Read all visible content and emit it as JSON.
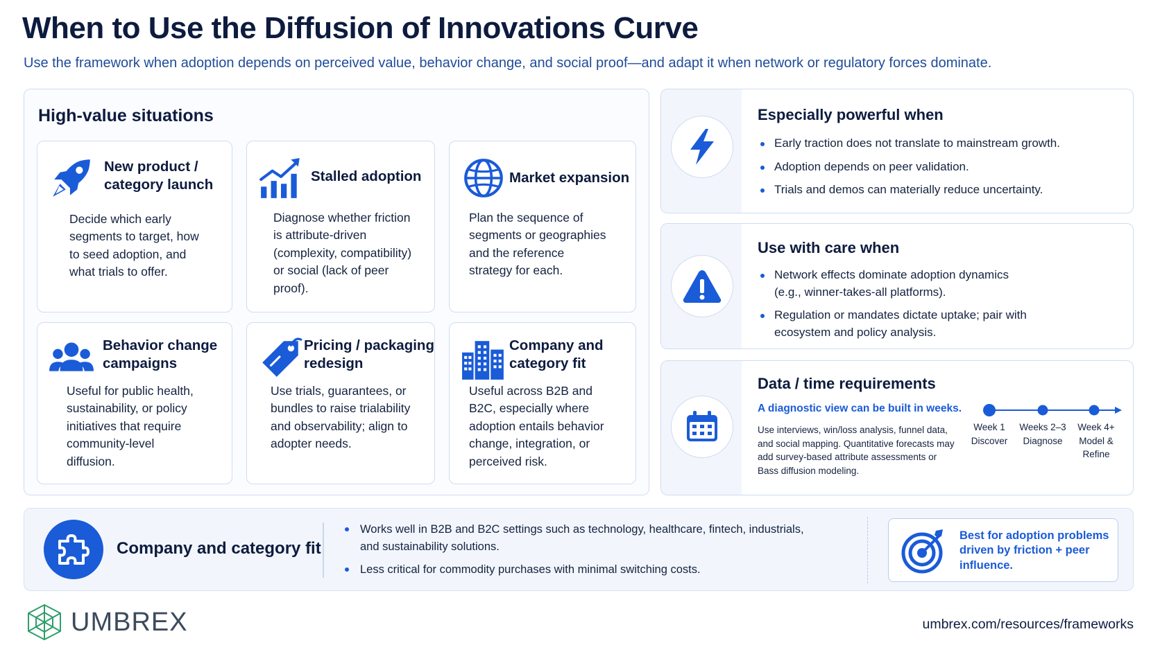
{
  "header": {
    "title": "When to Use the Diffusion of Innovations Curve",
    "subtitle": "Use the framework when adoption depends on perceived value, behavior change, and social proof—and adapt it when network or regulatory forces dominate."
  },
  "high_value": {
    "title": "High-value situations",
    "cards": [
      {
        "icon": "rocket-icon",
        "title_lines": [
          "New product /",
          "category launch"
        ],
        "text_lines": [
          "Decide which early",
          "segments to target, how",
          "to seed adoption, and",
          "what trials to offer."
        ]
      },
      {
        "icon": "growth-chart-icon",
        "title_lines": [
          "Stalled adoption"
        ],
        "text_lines": [
          "Diagnose whether friction",
          "is attribute-driven",
          "(complexity, compatibility)",
          "or social (lack of peer",
          "proof)."
        ]
      },
      {
        "icon": "globe-icon",
        "title_lines": [
          "Market expansion"
        ],
        "text_lines": [
          "Plan the sequence of",
          "segments or geographies",
          "and the reference",
          "strategy for each."
        ]
      },
      {
        "icon": "people-icon",
        "title_lines": [
          "Behavior change",
          "campaigns"
        ],
        "text_lines": [
          "Useful for public health,",
          "sustainability, or policy",
          "initiatives that require",
          "community-level",
          "diffusion."
        ]
      },
      {
        "icon": "price-tag-icon",
        "title_lines": [
          "Pricing / packaging",
          "redesign"
        ],
        "text_lines": [
          "Use trials, guarantees, or",
          "bundles to raise trialability",
          "and observability; align to",
          "adopter needs."
        ]
      },
      {
        "icon": "buildings-icon",
        "title_lines": [
          "Company and",
          "category fit"
        ],
        "text_lines": [
          "Useful across B2B and",
          "B2C, especially where",
          "adoption entails behavior",
          "change, integration, or",
          "perceived risk."
        ]
      }
    ]
  },
  "powerful": {
    "icon": "lightning-icon",
    "title": "Especially powerful when",
    "items": [
      "Early traction does not translate to mainstream growth.",
      "Adoption depends on peer validation.",
      "Trials and demos can materially reduce uncertainty."
    ]
  },
  "care": {
    "icon": "warning-icon",
    "title": "Use with care when",
    "items": [
      [
        "Network effects dominate adoption dynamics",
        "(e.g., winner-takes-all platforms)."
      ],
      [
        "Regulation or mandates dictate uptake; pair with",
        "ecosystem and policy analysis."
      ]
    ]
  },
  "data_time": {
    "icon": "calendar-icon",
    "title": "Data / time requirements",
    "highlight": "A diagnostic view can be built in weeks.",
    "detail_lines": [
      "Use interviews, win/loss analysis, funnel data,",
      "and social mapping. Quantitative forecasts may",
      "add survey-based attribute assessments or",
      "Bass diffusion modeling."
    ],
    "timeline": [
      {
        "lines": [
          "Week 1",
          "Discover"
        ]
      },
      {
        "lines": [
          "Weeks 2–3",
          "Diagnose"
        ]
      },
      {
        "lines": [
          "Week 4+",
          "Model &",
          "Refine"
        ]
      }
    ]
  },
  "fit": {
    "icon": "puzzle-icon",
    "title": "Company and category fit",
    "items": [
      [
        "Works well in B2B and B2C settings such as technology, healthcare, fintech, industrials,",
        "and sustainability solutions."
      ],
      [
        "Less critical for commodity purchases with minimal switching costs."
      ]
    ],
    "best": {
      "icon": "target-icon",
      "lines": [
        "Best for adoption problems",
        "driven by friction + peer",
        "influence."
      ]
    }
  },
  "footer": {
    "brand": "UMBREX",
    "url": "umbrex.com/resources/frameworks"
  },
  "colors": {
    "accent": "#1a5bd8",
    "navy": "#0d1b3e",
    "border": "#cfdcf2",
    "logo_green": "#2e9e6a"
  }
}
